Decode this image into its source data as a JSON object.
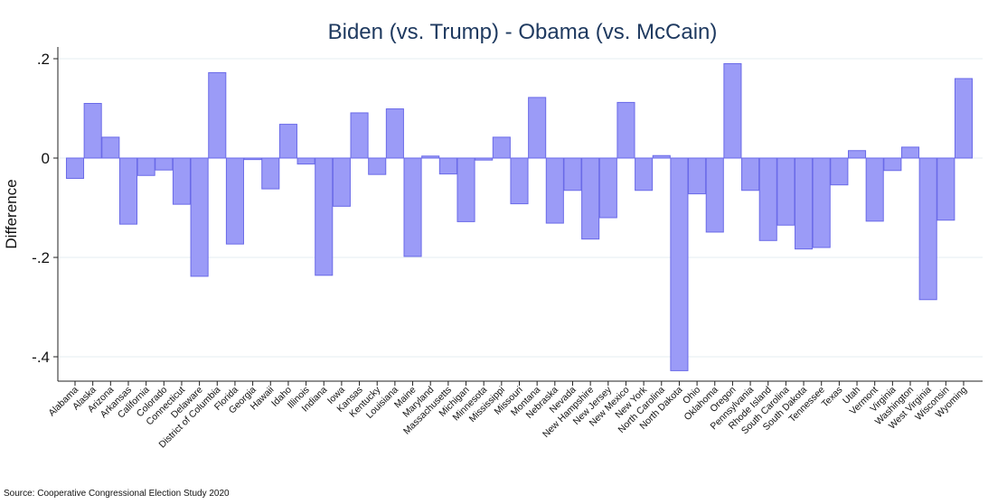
{
  "chart_data": {
    "type": "bar",
    "title": "Biden (vs. Trump) - Obama (vs. McCain)",
    "xlabel": "",
    "ylabel": "Difference",
    "ylim": [
      -0.45,
      0.22
    ],
    "yticks": [
      0.2,
      0,
      -0.2,
      -0.4
    ],
    "ytick_labels": [
      ".2",
      "0",
      "-.2",
      "-.4"
    ],
    "grid": true,
    "source": "Source: Cooperative Congressional Election Study 2020",
    "categories": [
      "Alabama",
      "Alaska",
      "Arizona",
      "Arkansas",
      "California",
      "Colorado",
      "Connecticut",
      "Delaware",
      "District of Columbia",
      "Florida",
      "Georgia",
      "Hawaii",
      "Idaho",
      "Illinois",
      "Indiana",
      "Iowa",
      "Kansas",
      "Kentucky",
      "Louisiana",
      "Maine",
      "Maryland",
      "Massachusetts",
      "Michigan",
      "Minnesota",
      "Mississippi",
      "Missouri",
      "Montana",
      "Nebraska",
      "Nevada",
      "New Hampshire",
      "New Jersey",
      "New Mexico",
      "New York",
      "North Carolina",
      "North Dakota",
      "Ohio",
      "Oklahoma",
      "Oregon",
      "Pennsylvania",
      "Rhode Island",
      "South Carolina",
      "South Dakota",
      "Tennessee",
      "Texas",
      "Utah",
      "Vermont",
      "Virginia",
      "Washington",
      "West Virginia",
      "Wisconsin",
      "Wyoming"
    ],
    "values": [
      -0.041,
      0.11,
      0.042,
      -0.133,
      -0.035,
      -0.024,
      -0.093,
      -0.238,
      0.172,
      -0.173,
      -0.003,
      -0.062,
      0.068,
      -0.012,
      -0.236,
      -0.097,
      0.091,
      -0.033,
      0.099,
      -0.198,
      0.004,
      -0.032,
      -0.128,
      -0.004,
      0.042,
      -0.092,
      0.122,
      -0.131,
      -0.065,
      -0.163,
      -0.12,
      0.112,
      -0.065,
      0.005,
      -0.428,
      -0.072,
      -0.149,
      0.19,
      -0.065,
      -0.166,
      -0.135,
      -0.183,
      -0.18,
      -0.054,
      0.015,
      -0.127,
      -0.025,
      0.022,
      -0.285,
      -0.125,
      0.16
    ]
  }
}
